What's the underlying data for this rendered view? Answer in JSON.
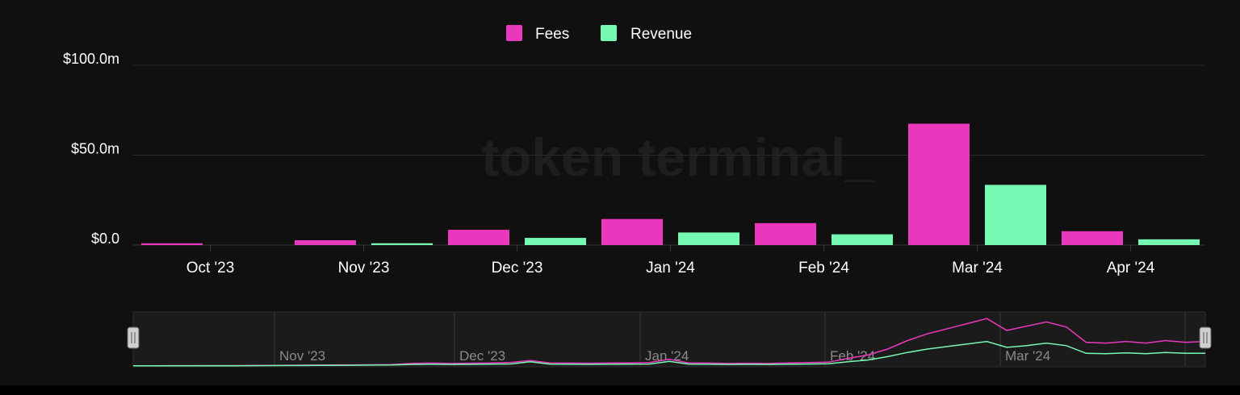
{
  "watermark": "token terminal_",
  "legend": [
    {
      "label": "Fees",
      "color": "#EA38BE"
    },
    {
      "label": "Revenue",
      "color": "#76F9B2"
    }
  ],
  "chart_data": {
    "type": "bar",
    "categories": [
      "Oct '23",
      "Nov '23",
      "Dec '23",
      "Jan '24",
      "Feb '24",
      "Mar '24",
      "Apr '24"
    ],
    "series": [
      {
        "name": "Fees",
        "color": "#EA38BE",
        "values": [
          1.0,
          2.7,
          8.5,
          14.5,
          12.2,
          67.5,
          7.7
        ]
      },
      {
        "name": "Revenue",
        "color": "#76F9B2",
        "values": [
          0.0,
          1.0,
          4.0,
          7.0,
          6.0,
          33.5,
          3.2
        ]
      }
    ],
    "ylim": [
      0,
      100
    ],
    "y_ticks": [
      {
        "value": 0,
        "label": "$0.0"
      },
      {
        "value": 50,
        "label": "$50.0m"
      },
      {
        "value": 100,
        "label": "$100.0m"
      }
    ],
    "grid": true,
    "legend_position": "top-center"
  },
  "navigator": {
    "labels": [
      "Nov '23",
      "Dec '23",
      "Jan '24",
      "Feb '24",
      "Mar '24"
    ],
    "fees_series": [
      0.3,
      0.3,
      0.4,
      0.4,
      0.5,
      0.5,
      0.6,
      0.8,
      0.9,
      1.0,
      1.2,
      1.3,
      1.4,
      1.6,
      3.0,
      3.4,
      3.0,
      3.2,
      3.6,
      4.2,
      6.5,
      3.6,
      3.4,
      3.2,
      3.5,
      3.6,
      4.0,
      8.0,
      3.5,
      3.4,
      3.0,
      3.2,
      3.0,
      3.5,
      4.0,
      4.5,
      9.0,
      13.0,
      20.0,
      30.0,
      38.0,
      44.0,
      50.0,
      56.0,
      42.0,
      47.0,
      52.0,
      46.0,
      28.0,
      27.0,
      29.0,
      27.0,
      30.0,
      28.0,
      29.0
    ],
    "revenue_series": [
      0.2,
      0.2,
      0.2,
      0.3,
      0.3,
      0.3,
      0.4,
      0.5,
      0.6,
      0.7,
      0.8,
      0.9,
      1.0,
      1.1,
      1.8,
      2.0,
      1.8,
      1.9,
      2.1,
      2.4,
      5.0,
      2.1,
      2.0,
      1.9,
      2.0,
      2.1,
      2.3,
      5.5,
      2.1,
      2.0,
      1.8,
      1.9,
      1.8,
      2.0,
      2.3,
      2.7,
      5.0,
      7.0,
      11.0,
      16.0,
      20.0,
      23.0,
      26.0,
      29.0,
      22.0,
      24.0,
      27.0,
      24.0,
      15.0,
      14.5,
      15.5,
      14.5,
      16.0,
      15.0,
      15.0
    ]
  }
}
